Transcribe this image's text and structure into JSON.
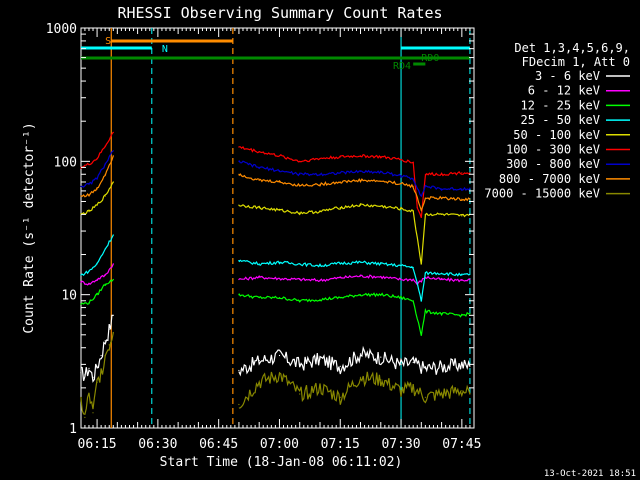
{
  "chart_data": {
    "type": "line",
    "title": "RHESSI Observing Summary Count Rates",
    "xlabel": "Start Time (18-Jan-08 06:11:02)",
    "ylabel": "Count Rate (s⁻¹ detector⁻¹)",
    "y_scale": "log",
    "ylim": [
      1,
      1000
    ],
    "xlim_minutes": [
      "06:11:02",
      "07:48:00"
    ],
    "x_ticks": [
      "06:15",
      "06:30",
      "06:45",
      "07:00",
      "07:15",
      "07:30",
      "07:45"
    ],
    "y_ticks": [
      "1",
      "10",
      "100",
      "1000"
    ],
    "legend_header": [
      "Det 1,3,4,5,6,9,",
      "FDecim 1, Att 0"
    ],
    "legend_position": "right",
    "timestamp": "13-Oct-2021 18:51",
    "annotations": [
      {
        "label": "S",
        "color": "#ff8c00"
      },
      {
        "label": "N",
        "color": "#00ffff"
      },
      {
        "label": "RD0",
        "color": "#008800"
      },
      {
        "label": "RD4",
        "color": "#008800"
      }
    ],
    "series": [
      {
        "name": "3 - 6 keV",
        "color": "#000000",
        "segments": [
          {
            "x": [
              "06:11",
              "06:12",
              "06:13",
              "06:14",
              "06:15",
              "06:16",
              "06:17",
              "06:18",
              "06:19"
            ],
            "y": [
              2.6,
              2.5,
              2.8,
              2.4,
              2.9,
              3.5,
              4.5,
              5.5,
              7
            ]
          },
          {
            "x": [
              "06:50",
              "06:55",
              "07:00",
              "07:05",
              "07:10",
              "07:15",
              "07:20",
              "07:25",
              "07:30",
              "07:33",
              "07:36",
              "07:40",
              "07:45",
              "07:47"
            ],
            "y": [
              2.7,
              3.2,
              3.5,
              3.0,
              3.3,
              2.9,
              3.6,
              3.4,
              3.0,
              3.1,
              2.8,
              2.9,
              3.0,
              2.9
            ]
          }
        ]
      },
      {
        "name": "6 - 12 keV",
        "color": "#ff00ff",
        "segments": [
          {
            "x": [
              "06:11",
              "06:13",
              "06:15",
              "06:17",
              "06:19"
            ],
            "y": [
              12.5,
              12,
              13,
              14,
              17
            ]
          },
          {
            "x": [
              "06:50",
              "06:55",
              "07:00",
              "07:05",
              "07:10",
              "07:15",
              "07:20",
              "07:25",
              "07:30",
              "07:33",
              "07:34",
              "07:36",
              "07:40",
              "07:45",
              "07:47"
            ],
            "y": [
              13,
              13.5,
              13.2,
              13,
              12.8,
              13.4,
              13.8,
              13.6,
              13.0,
              13.0,
              12.0,
              13.5,
              13.0,
              12.8,
              13.0
            ]
          }
        ]
      },
      {
        "name": "12 - 25 keV",
        "color": "#00ff00",
        "segments": [
          {
            "x": [
              "06:11",
              "06:13",
              "06:15",
              "06:17",
              "06:19"
            ],
            "y": [
              8.5,
              8.7,
              10,
              12,
              13
            ]
          },
          {
            "x": [
              "06:50",
              "06:55",
              "07:00",
              "07:05",
              "07:10",
              "07:15",
              "07:20",
              "07:25",
              "07:30",
              "07:33",
              "07:35",
              "07:36",
              "07:40",
              "07:45",
              "07:47"
            ],
            "y": [
              10,
              9.5,
              9.5,
              9.0,
              9.2,
              9.5,
              10.0,
              10.0,
              9.5,
              9.0,
              5.0,
              7.5,
              7.2,
              7.0,
              7.2
            ]
          }
        ]
      },
      {
        "name": "25 - 50 keV",
        "color": "#00ffff",
        "segments": [
          {
            "x": [
              "06:11",
              "06:13",
              "06:15",
              "06:17",
              "06:19"
            ],
            "y": [
              14,
              15,
              17,
              22,
              28
            ]
          },
          {
            "x": [
              "06:50",
              "06:55",
              "07:00",
              "07:05",
              "07:10",
              "07:15",
              "07:20",
              "07:25",
              "07:30",
              "07:33",
              "07:35",
              "07:36",
              "07:40",
              "07:45",
              "07:47"
            ],
            "y": [
              18,
              17,
              17.5,
              17,
              16.5,
              17.2,
              17.5,
              17.0,
              16.5,
              16.0,
              9.0,
              14.5,
              14.5,
              14.0,
              14.2
            ]
          }
        ]
      },
      {
        "name": "50 - 100 keV",
        "color": "#dddd00",
        "segments": [
          {
            "x": [
              "06:11",
              "06:13",
              "06:15",
              "06:17",
              "06:19"
            ],
            "y": [
              40,
              42,
              47,
              55,
              70
            ]
          },
          {
            "x": [
              "06:50",
              "06:55",
              "07:00",
              "07:05",
              "07:10",
              "07:15",
              "07:20",
              "07:25",
              "07:30",
              "07:33",
              "07:35",
              "07:36",
              "07:40",
              "07:45",
              "07:47"
            ],
            "y": [
              47,
              45,
              43,
              41,
              42,
              45,
              47,
              46,
              44,
              42,
              17,
              40,
              40,
              39,
              40
            ]
          }
        ]
      },
      {
        "name": "100 - 300 keV",
        "color": "#ff0000",
        "segments": [
          {
            "x": [
              "06:11",
              "06:13",
              "06:15",
              "06:17",
              "06:19"
            ],
            "y": [
              90,
              95,
              105,
              130,
              165
            ]
          },
          {
            "x": [
              "06:50",
              "06:55",
              "07:00",
              "07:05",
              "07:10",
              "07:15",
              "07:20",
              "07:25",
              "07:30",
              "07:33",
              "07:34",
              "07:35",
              "07:36",
              "07:40",
              "07:45",
              "07:47"
            ],
            "y": [
              128,
              118,
              110,
              100,
              105,
              108,
              110,
              108,
              103,
              98,
              45,
              38,
              80,
              80,
              82,
              82
            ]
          }
        ]
      },
      {
        "name": "300 - 800 keV",
        "color": "#0000cc",
        "segments": [
          {
            "x": [
              "06:11",
              "06:13",
              "06:15",
              "06:17",
              "06:19"
            ],
            "y": [
              65,
              67,
              75,
              95,
              120
            ]
          },
          {
            "x": [
              "06:50",
              "06:55",
              "07:00",
              "07:05",
              "07:10",
              "07:15",
              "07:20",
              "07:25",
              "07:30",
              "07:33",
              "07:35",
              "07:36",
              "07:40",
              "07:45",
              "07:47"
            ],
            "y": [
              100,
              90,
              85,
              80,
              80,
              82,
              84,
              83,
              78,
              74,
              55,
              65,
              62,
              62,
              63
            ]
          }
        ]
      },
      {
        "name": "800 - 7000 keV",
        "color": "#ff8c00",
        "segments": [
          {
            "x": [
              "06:11",
              "06:13",
              "06:15",
              "06:17",
              "06:19"
            ],
            "y": [
              55,
              56,
              62,
              80,
              110
            ]
          },
          {
            "x": [
              "06:50",
              "06:55",
              "07:00",
              "07:05",
              "07:10",
              "07:15",
              "07:20",
              "07:25",
              "07:30",
              "07:33",
              "07:35",
              "07:36",
              "07:40",
              "07:45",
              "07:47"
            ],
            "y": [
              80,
              72,
              70,
              66,
              67,
              70,
              72,
              71,
              68,
              65,
              43,
              53,
              53,
              52,
              52
            ]
          }
        ]
      },
      {
        "name": "7000 - 15000 keV",
        "color": "#888800",
        "segments": [
          {
            "x": [
              "06:11",
              "06:12",
              "06:13",
              "06:14",
              "06:15",
              "06:16",
              "06:17",
              "06:18",
              "06:19"
            ],
            "y": [
              1.6,
              1.2,
              1.8,
              1.3,
              2.2,
              2.6,
              3.5,
              4.2,
              5.2
            ]
          },
          {
            "x": [
              "06:50",
              "06:55",
              "07:00",
              "07:05",
              "07:10",
              "07:15",
              "07:20",
              "07:25",
              "07:30",
              "07:33",
              "07:36",
              "07:40",
              "07:45",
              "07:47"
            ],
            "y": [
              1.5,
              2.2,
              2.5,
              1.8,
              2.0,
              1.7,
              2.4,
              2.3,
              1.9,
              2.0,
              1.7,
              1.8,
              1.9,
              1.8
            ]
          }
        ]
      }
    ]
  }
}
